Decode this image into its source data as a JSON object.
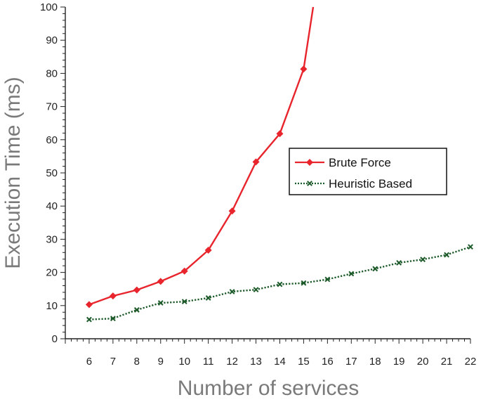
{
  "chart_data": {
    "type": "line",
    "xlabel": "Number of services",
    "ylabel": "Execution Time (ms)",
    "xlim": [
      5,
      22
    ],
    "ylim": [
      0,
      100
    ],
    "x_ticks": [
      6,
      7,
      8,
      9,
      10,
      11,
      12,
      13,
      14,
      15,
      16,
      17,
      18,
      19,
      20,
      21,
      22
    ],
    "y_ticks": [
      0,
      10,
      20,
      30,
      40,
      50,
      60,
      70,
      80,
      90,
      100
    ],
    "grid": false,
    "legend_position": "center-right",
    "series": [
      {
        "name": "Brute Force",
        "color": "#e8242c",
        "marker": "diamond",
        "line_style": "solid",
        "x": [
          6,
          7,
          8,
          9,
          10,
          11,
          12,
          13,
          14,
          15,
          15.4
        ],
        "values": [
          10.3,
          12.9,
          14.7,
          17.3,
          20.4,
          26.7,
          38.5,
          53.3,
          61.8,
          81.3,
          100
        ]
      },
      {
        "name": "Heuristic Based",
        "color": "#1d5a2a",
        "marker": "x",
        "line_style": "dotted",
        "x": [
          6,
          7,
          8,
          9,
          10,
          11,
          12,
          13,
          14,
          15,
          16,
          17,
          18,
          19,
          20,
          21,
          22
        ],
        "values": [
          5.8,
          6.1,
          8.7,
          10.8,
          11.2,
          12.3,
          14.2,
          14.8,
          16.4,
          16.8,
          17.9,
          19.6,
          21.1,
          22.9,
          23.9,
          25.3,
          27.7
        ]
      }
    ]
  }
}
